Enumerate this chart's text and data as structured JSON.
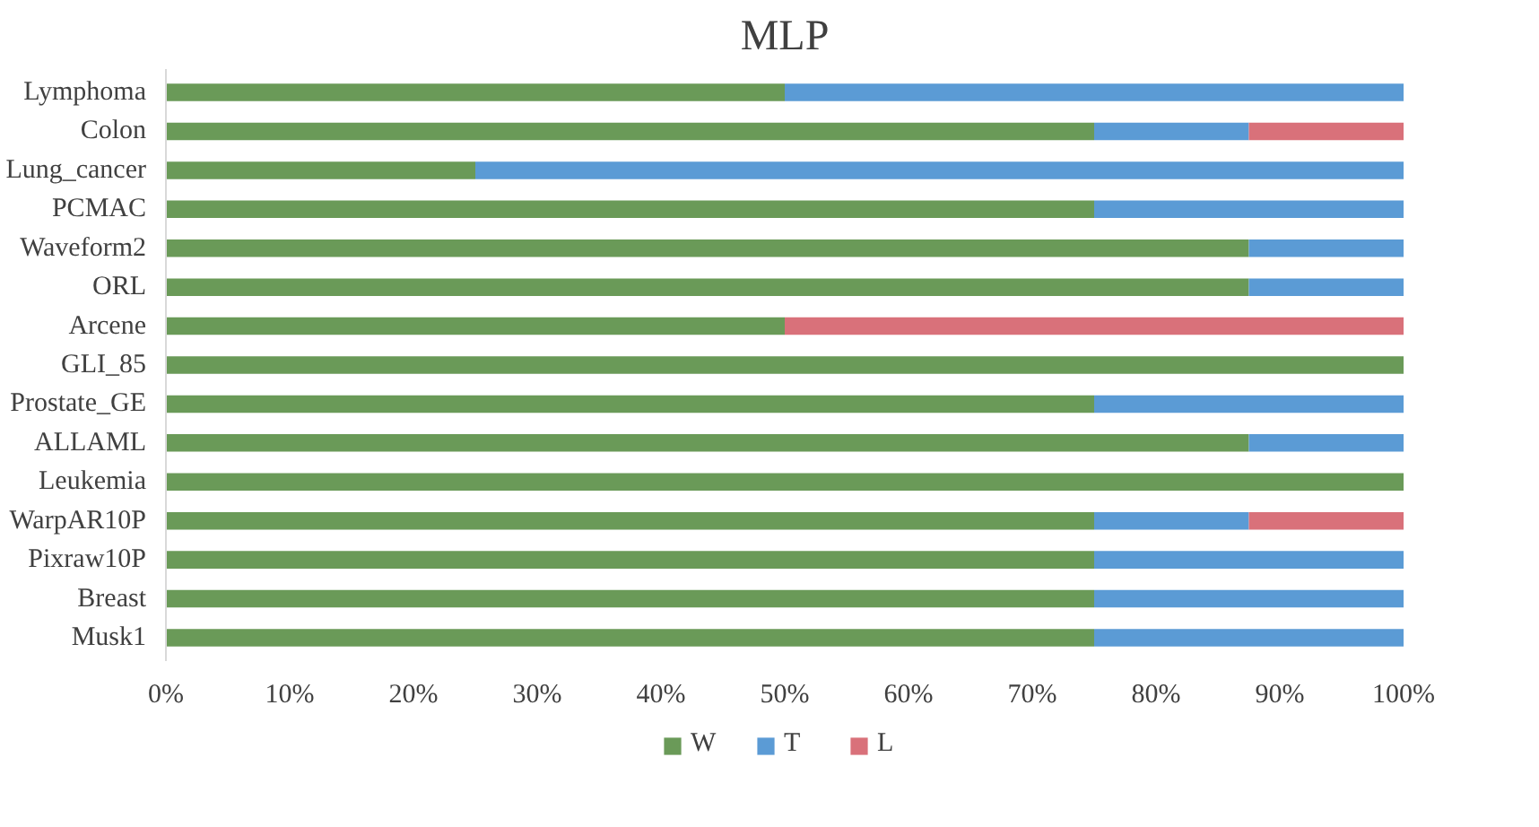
{
  "chart_data": {
    "type": "bar",
    "title": "MLP",
    "orientation": "horizontal",
    "stacked": true,
    "categories": [
      "Lymphoma",
      "Colon",
      "Lung_cancer",
      "PCMAC",
      "Waveform2",
      "ORL",
      "Arcene",
      "GLI_85",
      "Prostate_GE",
      "ALLAML",
      "Leukemia",
      "WarpAR10P",
      "Pixraw10P",
      "Breast",
      "Musk1"
    ],
    "series": [
      {
        "name": "W",
        "color": "#6a9a58",
        "values": [
          50,
          75,
          25,
          75,
          87.5,
          87.5,
          50,
          100,
          75,
          87.5,
          100,
          75,
          75,
          75,
          75
        ]
      },
      {
        "name": "T",
        "color": "#5b9bd5",
        "values": [
          50,
          12.5,
          75,
          25,
          12.5,
          12.5,
          0,
          0,
          25,
          12.5,
          0,
          12.5,
          25,
          25,
          25
        ]
      },
      {
        "name": "L",
        "color": "#d9717a",
        "values": [
          0,
          12.5,
          0,
          0,
          0,
          0,
          50,
          0,
          0,
          0,
          0,
          12.5,
          0,
          0,
          0
        ]
      }
    ],
    "xlim": [
      0,
      100
    ],
    "xticks": [
      {
        "value": 0,
        "label": "0%"
      },
      {
        "value": 10,
        "label": "10%"
      },
      {
        "value": 20,
        "label": "20%"
      },
      {
        "value": 30,
        "label": "30%"
      },
      {
        "value": 40,
        "label": "40%"
      },
      {
        "value": 50,
        "label": "50%"
      },
      {
        "value": 60,
        "label": "60%"
      },
      {
        "value": 70,
        "label": "70%"
      },
      {
        "value": 80,
        "label": "80%"
      },
      {
        "value": 90,
        "label": "90%"
      },
      {
        "value": 100,
        "label": "100%"
      }
    ],
    "grid": false,
    "legend": "bottom"
  }
}
